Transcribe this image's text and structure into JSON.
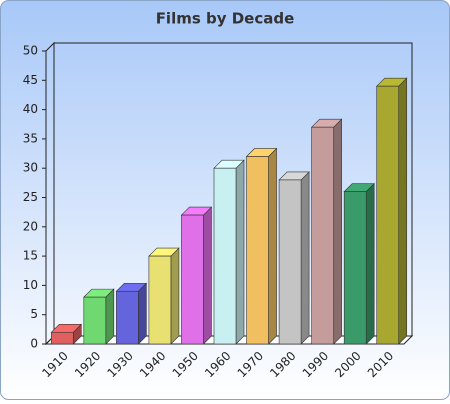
{
  "chart_data": {
    "type": "bar3d",
    "title": "Films by Decade",
    "categories": [
      "1910",
      "1920",
      "1930",
      "1940",
      "1950",
      "1960",
      "1970",
      "1980",
      "1990",
      "2000",
      "2010"
    ],
    "values": [
      2,
      8,
      9,
      15,
      22,
      30,
      32,
      28,
      37,
      26,
      44
    ],
    "colors": [
      "#e06060",
      "#70d870",
      "#6464dc",
      "#e8e070",
      "#e070e8",
      "#c8f0f0",
      "#f0c060",
      "#c4c4c4",
      "#c49c9c",
      "#3a9a6a",
      "#a8a830"
    ],
    "ylim": [
      0,
      50
    ],
    "yticks": [
      0,
      5,
      10,
      15,
      20,
      25,
      30,
      35,
      40,
      45,
      50
    ]
  }
}
